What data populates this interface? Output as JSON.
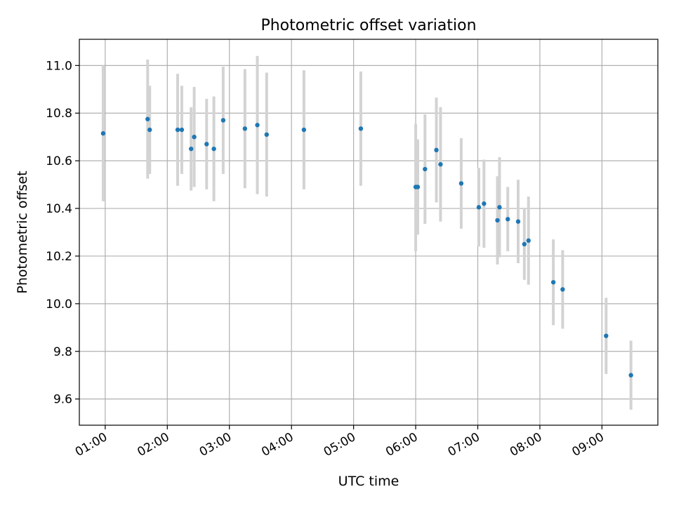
{
  "chart_data": {
    "type": "scatter",
    "title": "Photometric offset variation",
    "xlabel": "UTC time",
    "ylabel": "Photometric offset",
    "x_ticks": [
      "01:00",
      "02:00",
      "03:00",
      "04:00",
      "05:00",
      "06:00",
      "07:00",
      "08:00",
      "09:00"
    ],
    "y_ticks": [
      "9.6",
      "9.8",
      "10.0",
      "10.2",
      "10.4",
      "10.6",
      "10.8",
      "11.0"
    ],
    "xlim": [
      "00:35",
      "09:54"
    ],
    "ylim": [
      9.49,
      11.11
    ],
    "grid": true,
    "colors": {
      "point": "#1f77b4",
      "errorbar": "#d3d3d3",
      "grid": "#b0b0b0"
    },
    "series": [
      {
        "points": [
          {
            "t": "00:58",
            "y": 10.715,
            "lo": 10.43,
            "hi": 11.0
          },
          {
            "t": "01:41",
            "y": 10.775,
            "lo": 10.525,
            "hi": 11.025
          },
          {
            "t": "01:43",
            "y": 10.73,
            "lo": 10.545,
            "hi": 10.915
          },
          {
            "t": "02:10",
            "y": 10.73,
            "lo": 10.495,
            "hi": 10.965
          },
          {
            "t": "02:14",
            "y": 10.73,
            "lo": 10.545,
            "hi": 10.915
          },
          {
            "t": "02:23",
            "y": 10.65,
            "lo": 10.475,
            "hi": 10.825
          },
          {
            "t": "02:26",
            "y": 10.7,
            "lo": 10.49,
            "hi": 10.91
          },
          {
            "t": "02:38",
            "y": 10.67,
            "lo": 10.48,
            "hi": 10.86
          },
          {
            "t": "02:45",
            "y": 10.65,
            "lo": 10.43,
            "hi": 10.87
          },
          {
            "t": "02:54",
            "y": 10.77,
            "lo": 10.545,
            "hi": 10.995
          },
          {
            "t": "03:15",
            "y": 10.735,
            "lo": 10.485,
            "hi": 10.985
          },
          {
            "t": "03:27",
            "y": 10.75,
            "lo": 10.46,
            "hi": 11.04
          },
          {
            "t": "03:36",
            "y": 10.71,
            "lo": 10.45,
            "hi": 10.97
          },
          {
            "t": "04:12",
            "y": 10.73,
            "lo": 10.48,
            "hi": 10.98
          },
          {
            "t": "05:07",
            "y": 10.735,
            "lo": 10.495,
            "hi": 10.975
          },
          {
            "t": "06:00",
            "y": 10.49,
            "lo": 10.22,
            "hi": 10.755
          },
          {
            "t": "06:02",
            "y": 10.49,
            "lo": 10.29,
            "hi": 10.69
          },
          {
            "t": "06:09",
            "y": 10.565,
            "lo": 10.335,
            "hi": 10.795
          },
          {
            "t": "06:20",
            "y": 10.645,
            "lo": 10.425,
            "hi": 10.865
          },
          {
            "t": "06:24",
            "y": 10.585,
            "lo": 10.345,
            "hi": 10.825
          },
          {
            "t": "06:44",
            "y": 10.505,
            "lo": 10.315,
            "hi": 10.695
          },
          {
            "t": "07:01",
            "y": 10.405,
            "lo": 10.24,
            "hi": 10.57
          },
          {
            "t": "07:06",
            "y": 10.42,
            "lo": 10.235,
            "hi": 10.605
          },
          {
            "t": "07:19",
            "y": 10.35,
            "lo": 10.165,
            "hi": 10.535
          },
          {
            "t": "07:21",
            "y": 10.405,
            "lo": 10.195,
            "hi": 10.615
          },
          {
            "t": "07:29",
            "y": 10.355,
            "lo": 10.22,
            "hi": 10.49
          },
          {
            "t": "07:39",
            "y": 10.345,
            "lo": 10.17,
            "hi": 10.52
          },
          {
            "t": "07:45",
            "y": 10.25,
            "lo": 10.1,
            "hi": 10.4
          },
          {
            "t": "07:49",
            "y": 10.265,
            "lo": 10.08,
            "hi": 10.45
          },
          {
            "t": "08:13",
            "y": 10.09,
            "lo": 9.91,
            "hi": 10.27
          },
          {
            "t": "08:22",
            "y": 10.06,
            "lo": 9.895,
            "hi": 10.225
          },
          {
            "t": "09:04",
            "y": 9.865,
            "lo": 9.705,
            "hi": 10.025
          },
          {
            "t": "09:28",
            "y": 9.7,
            "lo": 9.555,
            "hi": 9.845
          }
        ]
      }
    ]
  }
}
